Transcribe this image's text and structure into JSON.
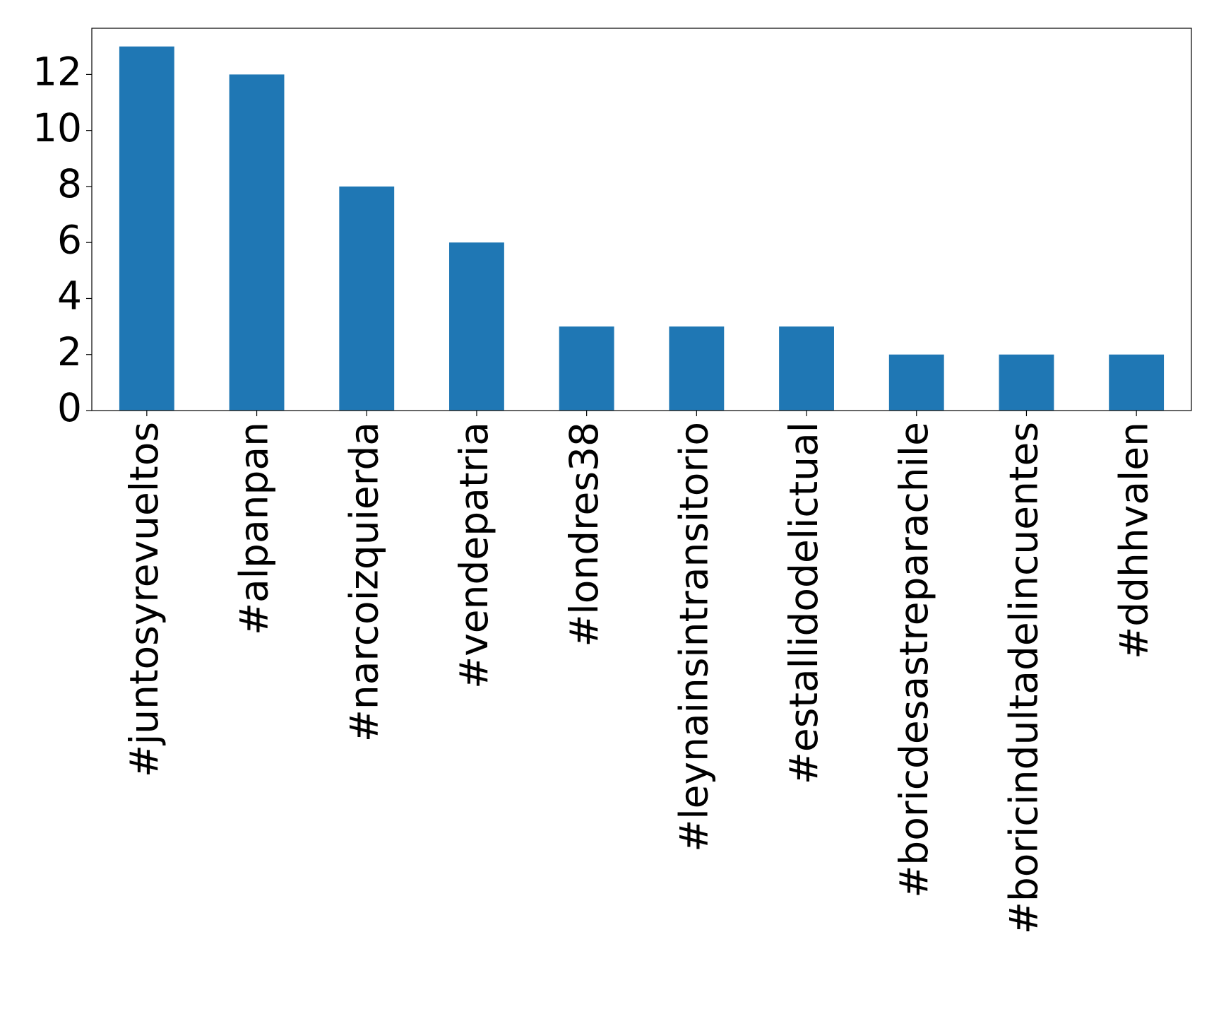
{
  "chart_data": {
    "type": "bar",
    "categories": [
      "#juntosyrevueltos",
      "#alpanpan",
      "#narcoizquierda",
      "#vendepatria",
      "#londres38",
      "#leynainsintransitorio",
      "#estallidodelictual",
      "#boricdesastreparachile",
      "#boricindultadelincuentes",
      "#ddhhvalen"
    ],
    "values": [
      13,
      12,
      8,
      6,
      3,
      3,
      3,
      2,
      2,
      2
    ],
    "color": "#1f77b4",
    "ylim": [
      0,
      13.65
    ],
    "yticks": [
      0,
      2,
      4,
      6,
      8,
      10,
      12
    ],
    "grid": false
  }
}
